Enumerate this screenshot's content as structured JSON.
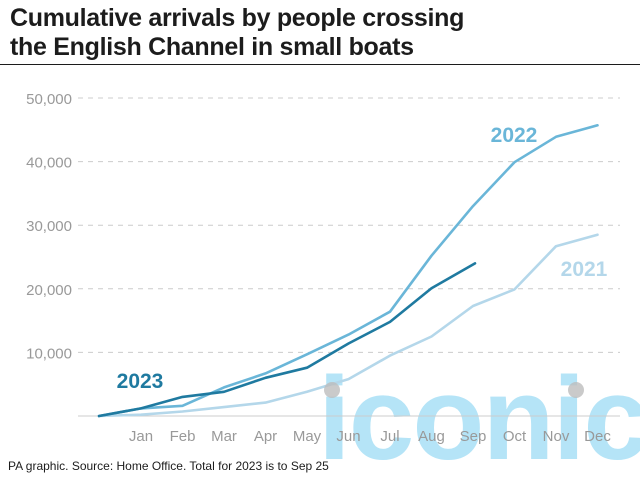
{
  "title_line1": "Cumulative arrivals by people crossing",
  "title_line2": "the English Channel in small boats",
  "footer": "PA graphic. Source: Home Office. Total for 2023 is to Sep 25",
  "watermark": "iconic",
  "colors": {
    "y2021": "#b4d7ea",
    "y2022": "#6ab6d8",
    "y2023": "#1f7aa0",
    "grid": "#cccccc",
    "tick": "#999999"
  },
  "chart_data": {
    "type": "line",
    "categories": [
      "Jan",
      "Feb",
      "Mar",
      "Apr",
      "May",
      "Jun",
      "Jul",
      "Aug",
      "Sep",
      "Oct",
      "Nov",
      "Dec"
    ],
    "y_ticks": [
      "10,000",
      "20,000",
      "30,000",
      "40,000",
      "50,000"
    ],
    "y_tick_values": [
      10000,
      20000,
      30000,
      40000,
      50000
    ],
    "ylim": [
      0,
      50000
    ],
    "grid": true,
    "series": [
      {
        "name": "2021",
        "key": "y2021",
        "x": [
          "Jan 1",
          "Jan",
          "Feb",
          "Mar",
          "Apr",
          "May",
          "Jun",
          "Jul",
          "Aug",
          "Sep",
          "Oct",
          "Nov",
          "Dec"
        ],
        "values": [
          0,
          200,
          700,
          1400,
          2100,
          3800,
          5800,
          9500,
          12500,
          17300,
          19900,
          26700,
          28500
        ]
      },
      {
        "name": "2022",
        "key": "y2022",
        "x": [
          "Jan 1",
          "Jan",
          "Feb",
          "Mar",
          "Apr",
          "May",
          "Jun",
          "Jul",
          "Aug",
          "Sep",
          "Oct",
          "Nov",
          "Dec"
        ],
        "values": [
          0,
          1200,
          1600,
          4500,
          6700,
          9700,
          12800,
          16400,
          25200,
          33000,
          39900,
          43900,
          45700
        ]
      },
      {
        "name": "2023",
        "key": "y2023",
        "x": [
          "Jan 1",
          "Jan",
          "Feb",
          "Mar",
          "Apr",
          "May",
          "Jun",
          "Jul",
          "Aug",
          "Sep 25"
        ],
        "values": [
          0,
          1200,
          3000,
          3800,
          6000,
          7600,
          11400,
          14800,
          20100,
          24000
        ]
      }
    ]
  }
}
